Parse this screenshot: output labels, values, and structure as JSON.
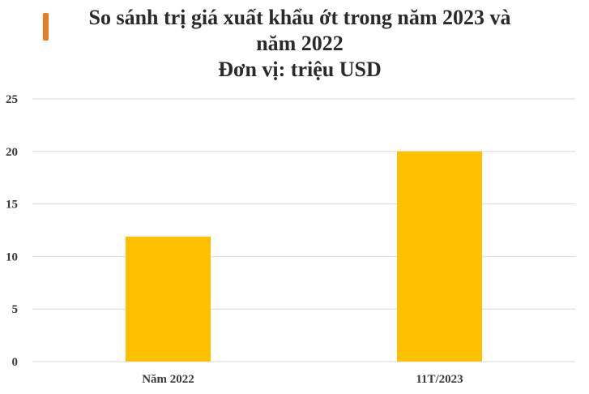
{
  "accent_color": "#e97a2a",
  "title_lines": [
    "So sánh trị giá xuất khẩu ớt trong năm 2023 và",
    "năm 2022",
    "Đơn vị: triệu USD"
  ],
  "chart_data": {
    "type": "bar",
    "title": "So sánh trị giá xuất khẩu ớt trong năm 2023 và năm 2022 Đơn vị: triệu USD",
    "categories": [
      "Năm 2022",
      "11T/2023"
    ],
    "values": [
      11.9,
      20
    ],
    "ylim": [
      0,
      25
    ],
    "yticks": [
      0,
      5,
      10,
      15,
      20,
      25
    ],
    "grid": true,
    "bar_color": "#ffc000",
    "grid_color": "#d9d9d9"
  }
}
